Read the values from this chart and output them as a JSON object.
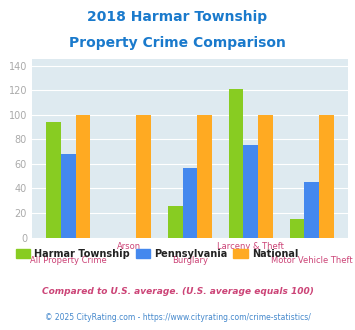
{
  "title_line1": "2018 Harmar Township",
  "title_line2": "Property Crime Comparison",
  "title_color": "#1a7acc",
  "categories": [
    "All Property Crime",
    "Arson",
    "Burglary",
    "Larceny & Theft",
    "Motor Vehicle Theft"
  ],
  "harmar": [
    94,
    0,
    26,
    121,
    15
  ],
  "pennsylvania": [
    68,
    0,
    57,
    75,
    45
  ],
  "national": [
    100,
    100,
    100,
    100,
    100
  ],
  "harmar_color": "#88cc22",
  "pennsylvania_color": "#4488ee",
  "national_color": "#ffaa22",
  "ylim": [
    0,
    145
  ],
  "yticks": [
    0,
    20,
    40,
    60,
    80,
    100,
    120,
    140
  ],
  "legend_labels": [
    "Harmar Township",
    "Pennsylvania",
    "National"
  ],
  "footnote1": "Compared to U.S. average. (U.S. average equals 100)",
  "footnote2": "© 2025 CityRating.com - https://www.cityrating.com/crime-statistics/",
  "footnote1_color": "#cc4477",
  "footnote2_color": "#4488cc",
  "plot_bg_color": "#deeaf0",
  "xlabel_color": "#cc4477",
  "legend_text_color": "#222222",
  "tick_color": "#aaaaaa",
  "grid_color": "#ffffff"
}
